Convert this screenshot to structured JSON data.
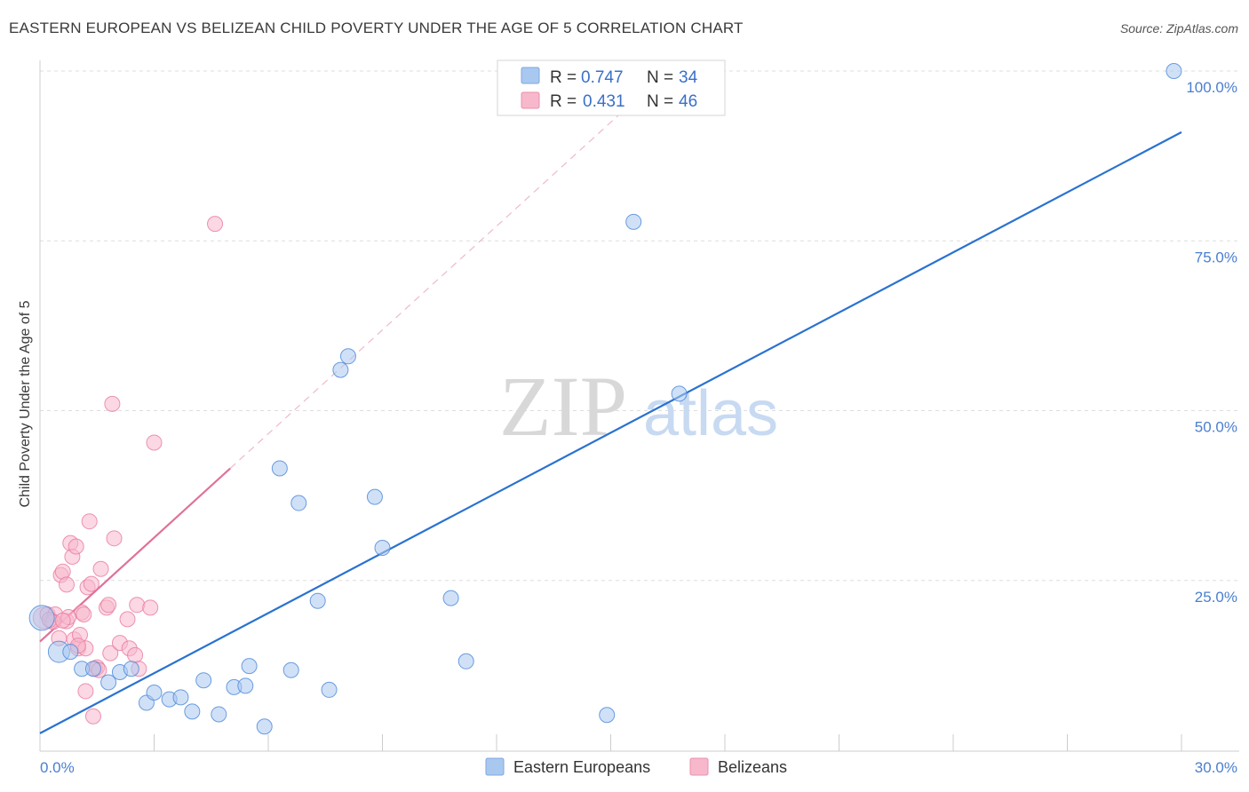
{
  "header": {
    "title": "EASTERN EUROPEAN VS BELIZEAN CHILD POVERTY UNDER THE AGE OF 5 CORRELATION CHART",
    "source": "Source: ZipAtlas.com"
  },
  "watermark": {
    "zip": "ZIP",
    "atlas": "atlas"
  },
  "legend": {
    "r_label": "R = ",
    "n_label": "N = ",
    "rows": [
      {
        "r": "0.747",
        "n": "34",
        "color": "#a9c8f0"
      },
      {
        "r": "0.431",
        "n": "46",
        "color": "#f7b8cc"
      }
    ]
  },
  "bottom_legend": [
    {
      "label": "Eastern Europeans",
      "color": "#a9c8f0"
    },
    {
      "label": "Belizeans",
      "color": "#f7b8cc"
    }
  ],
  "chart_data": {
    "type": "scatter",
    "title": "EASTERN EUROPEAN VS BELIZEAN CHILD POVERTY UNDER THE AGE OF 5 CORRELATION CHART",
    "xlabel": "",
    "ylabel": "Child Poverty Under the Age of 5",
    "xlim": [
      0,
      30
    ],
    "ylim": [
      0,
      100
    ],
    "x_tick_labels": [
      "0.0%",
      "30.0%"
    ],
    "y_tick_labels": [
      "100.0%",
      "75.0%",
      "50.0%",
      "25.0%"
    ],
    "y_ticks": [
      100,
      75,
      50,
      25
    ],
    "grid": true,
    "legend_position": "top-center",
    "series": [
      {
        "name": "Eastern Europeans",
        "color": "#4a86d8",
        "fill": "#a9c8f0",
        "trend_color": "#2a72d0",
        "trend": {
          "x": [
            0,
            30
          ],
          "y": [
            2.5,
            91
          ]
        },
        "points": [
          {
            "x": 0.05,
            "y": 19.5,
            "s": 14
          },
          {
            "x": 0.5,
            "y": 14.5,
            "s": 12
          },
          {
            "x": 0.8,
            "y": 14.5
          },
          {
            "x": 1.1,
            "y": 12
          },
          {
            "x": 1.4,
            "y": 12
          },
          {
            "x": 1.8,
            "y": 10
          },
          {
            "x": 2.1,
            "y": 11.5
          },
          {
            "x": 2.4,
            "y": 12
          },
          {
            "x": 2.8,
            "y": 7
          },
          {
            "x": 3.0,
            "y": 8.5
          },
          {
            "x": 3.4,
            "y": 7.5
          },
          {
            "x": 3.7,
            "y": 7.8
          },
          {
            "x": 4.0,
            "y": 5.7
          },
          {
            "x": 4.3,
            "y": 10.3
          },
          {
            "x": 4.7,
            "y": 5.3
          },
          {
            "x": 5.1,
            "y": 9.3
          },
          {
            "x": 5.4,
            "y": 9.5
          },
          {
            "x": 5.5,
            "y": 12.4
          },
          {
            "x": 5.9,
            "y": 3.5
          },
          {
            "x": 6.3,
            "y": 41.5
          },
          {
            "x": 6.6,
            "y": 11.8
          },
          {
            "x": 6.8,
            "y": 36.4
          },
          {
            "x": 7.3,
            "y": 22
          },
          {
            "x": 7.6,
            "y": 8.9
          },
          {
            "x": 7.9,
            "y": 56
          },
          {
            "x": 8.1,
            "y": 58
          },
          {
            "x": 8.8,
            "y": 37.3
          },
          {
            "x": 9.0,
            "y": 29.8
          },
          {
            "x": 10.8,
            "y": 22.4
          },
          {
            "x": 11.2,
            "y": 13.1
          },
          {
            "x": 14.9,
            "y": 5.2
          },
          {
            "x": 15.6,
            "y": 77.8
          },
          {
            "x": 16.8,
            "y": 52.5
          },
          {
            "x": 29.8,
            "y": 100
          }
        ]
      },
      {
        "name": "Belizeans",
        "color": "#e8799f",
        "fill": "#f7b8cc",
        "trend_color": "#e0709a",
        "trend": {
          "x": [
            0,
            5
          ],
          "y": [
            16,
            41.5
          ]
        },
        "trend_dashed": {
          "x": [
            5,
            15.5
          ],
          "y": [
            41.5,
            95
          ]
        },
        "points": [
          {
            "x": 0.1,
            "y": 19.5,
            "s": 12
          },
          {
            "x": 0.2,
            "y": 20
          },
          {
            "x": 0.3,
            "y": 19
          },
          {
            "x": 0.4,
            "y": 20
          },
          {
            "x": 0.5,
            "y": 16.5
          },
          {
            "x": 0.55,
            "y": 25.8
          },
          {
            "x": 0.6,
            "y": 26.3
          },
          {
            "x": 0.7,
            "y": 19
          },
          {
            "x": 0.7,
            "y": 24.4
          },
          {
            "x": 0.8,
            "y": 30.5
          },
          {
            "x": 0.85,
            "y": 28.5
          },
          {
            "x": 0.9,
            "y": 16.3
          },
          {
            "x": 0.95,
            "y": 30
          },
          {
            "x": 1.0,
            "y": 15
          },
          {
            "x": 1.05,
            "y": 17
          },
          {
            "x": 1.1,
            "y": 20.3
          },
          {
            "x": 1.15,
            "y": 20
          },
          {
            "x": 1.2,
            "y": 15
          },
          {
            "x": 1.25,
            "y": 24
          },
          {
            "x": 1.3,
            "y": 33.7
          },
          {
            "x": 1.35,
            "y": 24.5
          },
          {
            "x": 1.4,
            "y": 5
          },
          {
            "x": 1.45,
            "y": 12
          },
          {
            "x": 1.5,
            "y": 12.2
          },
          {
            "x": 1.55,
            "y": 11.8
          },
          {
            "x": 1.6,
            "y": 26.7
          },
          {
            "x": 1.75,
            "y": 21
          },
          {
            "x": 1.8,
            "y": 21.4
          },
          {
            "x": 1.85,
            "y": 14.3
          },
          {
            "x": 1.9,
            "y": 51
          },
          {
            "x": 1.95,
            "y": 31.2
          },
          {
            "x": 2.1,
            "y": 15.8
          },
          {
            "x": 2.3,
            "y": 19.3
          },
          {
            "x": 2.35,
            "y": 15
          },
          {
            "x": 2.5,
            "y": 14
          },
          {
            "x": 2.55,
            "y": 21.4
          },
          {
            "x": 2.6,
            "y": 12
          },
          {
            "x": 2.9,
            "y": 21
          },
          {
            "x": 3.0,
            "y": 45.3
          },
          {
            "x": 4.6,
            "y": 77.5
          },
          {
            "x": 1.2,
            "y": 8.7
          },
          {
            "x": 0.35,
            "y": 18.9
          },
          {
            "x": 0.75,
            "y": 19.6
          },
          {
            "x": 0.25,
            "y": 19.2
          },
          {
            "x": 1.0,
            "y": 15.4
          },
          {
            "x": 0.6,
            "y": 19.1
          }
        ]
      }
    ]
  }
}
